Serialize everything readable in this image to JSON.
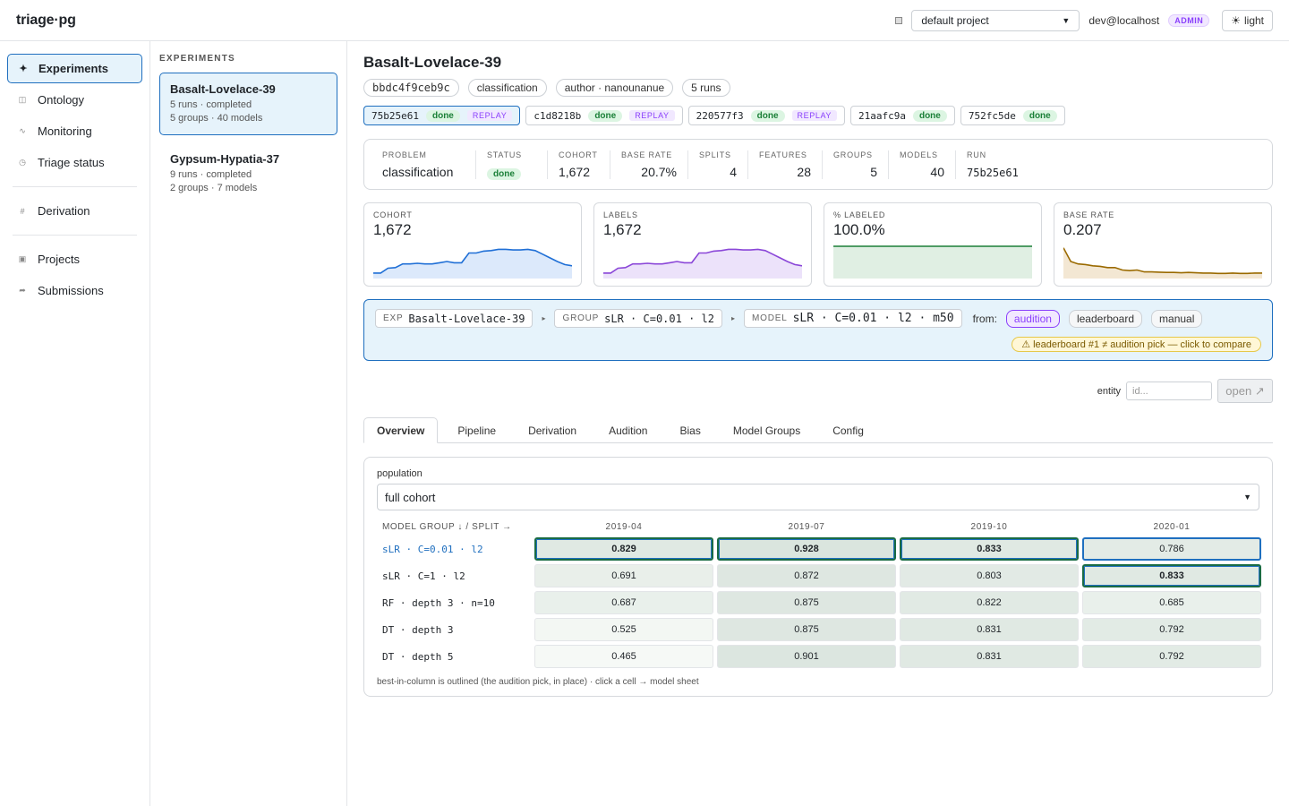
{
  "app": {
    "logo": "triage·pg"
  },
  "topbar": {
    "project": "default project",
    "user": "dev@localhost",
    "role_badge": "ADMIN",
    "theme_button": "light"
  },
  "sidebar": {
    "items": [
      {
        "label": "Experiments",
        "icon": "sparkle-icon",
        "glyph": "✦"
      },
      {
        "label": "Ontology",
        "icon": "ontology-icon",
        "glyph": "◫"
      },
      {
        "label": "Monitoring",
        "icon": "pulse-icon",
        "glyph": "∿"
      },
      {
        "label": "Triage status",
        "icon": "clock-icon",
        "glyph": "◷"
      },
      {
        "label": "Derivation",
        "icon": "hash-icon",
        "glyph": "#"
      },
      {
        "label": "Projects",
        "icon": "project-icon",
        "glyph": "▣"
      },
      {
        "label": "Submissions",
        "icon": "share-icon",
        "glyph": "➦"
      }
    ]
  },
  "experiments": {
    "header": "EXPERIMENTS",
    "items": [
      {
        "name": "Basalt-Lovelace-39",
        "line1": "5 runs · completed",
        "line2": "5 groups · 40 models"
      },
      {
        "name": "Gypsum-Hypatia-37",
        "line1": "9 runs · completed",
        "line2": "2 groups · 7 models"
      }
    ]
  },
  "main": {
    "title": "Basalt-Lovelace-39",
    "chips": [
      "bbdc4f9ceb9c",
      "classification",
      "author · nanounanue",
      "5 runs"
    ],
    "runs": [
      {
        "id": "75b25e61",
        "status": "done",
        "replay": "REPLAY"
      },
      {
        "id": "c1d8218b",
        "status": "done",
        "replay": "REPLAY"
      },
      {
        "id": "220577f3",
        "status": "done",
        "replay": "REPLAY"
      },
      {
        "id": "21aafc9a",
        "status": "done",
        "replay": ""
      },
      {
        "id": "752fc5de",
        "status": "done",
        "replay": ""
      }
    ],
    "stats": {
      "problem_label": "PROBLEM",
      "problem": "classification",
      "status_label": "STATUS",
      "status": "done",
      "cohort_label": "COHORT",
      "cohort": "1,672",
      "base_rate_label": "BASE RATE",
      "base_rate": "20.7%",
      "splits_label": "SPLITS",
      "splits": "4",
      "features_label": "FEATURES",
      "features": "28",
      "groups_label": "GROUPS",
      "groups": "5",
      "models_label": "MODELS",
      "models": "40",
      "run_label": "RUN",
      "run": "75b25e61"
    },
    "sparks": [
      {
        "label": "COHORT",
        "value": "1,672",
        "color": "#1f6fd6",
        "fill": "#dce9fb",
        "series": [
          0.12,
          0.12,
          0.28,
          0.3,
          0.42,
          0.42,
          0.44,
          0.42,
          0.42,
          0.46,
          0.5,
          0.46,
          0.46,
          0.78,
          0.78,
          0.84,
          0.86,
          0.9,
          0.9,
          0.88,
          0.88,
          0.9,
          0.86,
          0.74,
          0.62,
          0.5,
          0.4,
          0.36
        ]
      },
      {
        "label": "LABELS",
        "value": "1,672",
        "color": "#8a46d8",
        "fill": "#ece2fa",
        "series": [
          0.12,
          0.12,
          0.28,
          0.3,
          0.42,
          0.42,
          0.44,
          0.42,
          0.42,
          0.46,
          0.5,
          0.46,
          0.46,
          0.78,
          0.78,
          0.84,
          0.86,
          0.9,
          0.9,
          0.88,
          0.88,
          0.9,
          0.86,
          0.74,
          0.62,
          0.5,
          0.4,
          0.36
        ]
      },
      {
        "label": "% LABELED",
        "value": "100.0%",
        "color": "#1a7f37",
        "fill": "#e0efe3",
        "series": [
          1,
          1,
          1,
          1,
          1,
          1,
          1,
          1,
          1,
          1,
          1,
          1,
          1,
          1,
          1,
          1,
          1,
          1,
          1,
          1,
          1,
          1,
          1,
          1,
          1,
          1,
          1,
          1
        ]
      },
      {
        "label": "BASE RATE",
        "value": "0.207",
        "color": "#9a6a00",
        "fill": "#f3e7d3",
        "series": [
          0.95,
          0.5,
          0.42,
          0.4,
          0.36,
          0.34,
          0.3,
          0.3,
          0.22,
          0.2,
          0.22,
          0.16,
          0.16,
          0.15,
          0.14,
          0.14,
          0.13,
          0.14,
          0.13,
          0.12,
          0.12,
          0.11,
          0.11,
          0.12,
          0.11,
          0.11,
          0.12,
          0.12
        ]
      }
    ],
    "crumbs": {
      "exp_key": "EXP",
      "exp": "Basalt-Lovelace-39",
      "group_key": "GROUP",
      "group": "sLR · C=0.01 · l2",
      "model_key": "MODEL",
      "model": "sLR · C=0.01 · l2 · m50",
      "from_label": "from:",
      "sources": [
        "audition",
        "leaderboard",
        "manual"
      ],
      "warning": "⚠ leaderboard #1 ≠ audition pick — click to compare"
    },
    "entity": {
      "label": "entity",
      "placeholder": "id...",
      "open_button": "open ↗"
    },
    "tabs": [
      "Overview",
      "Pipeline",
      "Derivation",
      "Audition",
      "Bias",
      "Model Groups",
      "Config"
    ],
    "overview": {
      "population_label": "population",
      "population": "full cohort",
      "corner_header": "MODEL GROUP ↓ / SPLIT →",
      "splits": [
        "2019-04",
        "2019-07",
        "2019-10",
        "2020-01"
      ],
      "rows": [
        {
          "group": "sLR · C=0.01 · l2",
          "values": [
            "0.829",
            "0.928",
            "0.833",
            "0.786"
          ]
        },
        {
          "group": "sLR · C=1 · l2",
          "values": [
            "0.691",
            "0.872",
            "0.803",
            "0.833"
          ]
        },
        {
          "group": "RF · depth 3 · n=10",
          "values": [
            "0.687",
            "0.875",
            "0.822",
            "0.685"
          ]
        },
        {
          "group": "DT · depth 3",
          "values": [
            "0.525",
            "0.875",
            "0.831",
            "0.792"
          ]
        },
        {
          "group": "DT · depth 5",
          "values": [
            "0.465",
            "0.901",
            "0.831",
            "0.792"
          ]
        }
      ],
      "footnote": "best-in-column is outlined (the audition pick, in place) · click a cell → model sheet"
    }
  }
}
